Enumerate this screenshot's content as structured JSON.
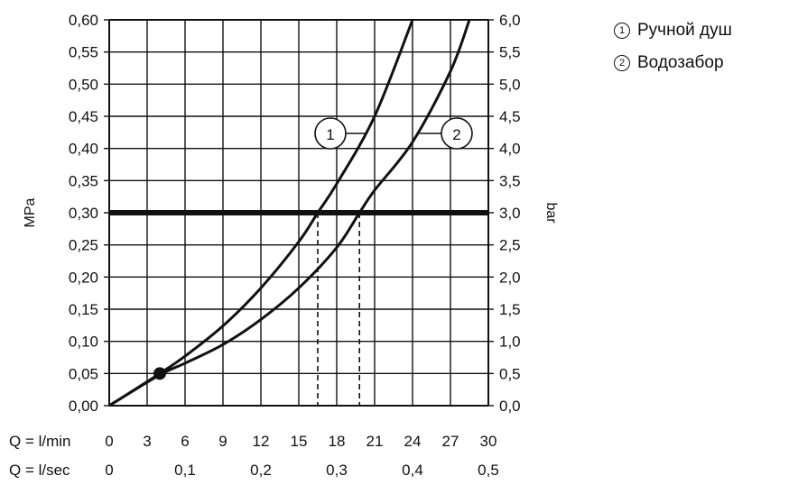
{
  "chart_data": {
    "type": "line",
    "ylabel_left": "MPa",
    "ylabel_right": "bar",
    "x_lmin_label": "Q = l/min",
    "x_lsec_label": "Q = l/sec",
    "x_lmin_ticks": [
      "0",
      "3",
      "6",
      "9",
      "12",
      "15",
      "18",
      "21",
      "24",
      "27",
      "30"
    ],
    "x_lsec_ticks": [
      "0",
      "0,1",
      "0,2",
      "0,3",
      "0,4",
      "0,5"
    ],
    "y_left_ticks": [
      "0,00",
      "0,05",
      "0,10",
      "0,15",
      "0,20",
      "0,25",
      "0,30",
      "0,35",
      "0,40",
      "0,45",
      "0,50",
      "0,55",
      "0,60"
    ],
    "y_right_ticks": [
      "0,0",
      "0,5",
      "1,0",
      "1,5",
      "2,0",
      "2,5",
      "3,0",
      "3,5",
      "4,0",
      "4,5",
      "5,0",
      "5,5",
      "6,0"
    ],
    "xlim": [
      0,
      30
    ],
    "ylim": [
      0,
      0.6
    ],
    "grid": true,
    "reference_pressure": 0.3,
    "marker_point": {
      "x": 4,
      "y": 0.05
    },
    "series": [
      {
        "name": "Ручной душ",
        "label": "1",
        "x": [
          0,
          4,
          6,
          9,
          12,
          15,
          16.5,
          18,
          21,
          24
        ],
        "y": [
          0,
          0.05,
          0.077,
          0.124,
          0.183,
          0.255,
          0.3,
          0.345,
          0.45,
          0.6
        ]
      },
      {
        "name": "Водозабор",
        "label": "2",
        "x": [
          0,
          4,
          6,
          9,
          12,
          15,
          18,
          19.8,
          21,
          24,
          27,
          28.5
        ],
        "y": [
          0,
          0.048,
          0.066,
          0.095,
          0.134,
          0.183,
          0.246,
          0.3,
          0.335,
          0.41,
          0.52,
          0.6
        ]
      }
    ],
    "legend": [
      {
        "num": "1",
        "label": "Ручной душ"
      },
      {
        "num": "2",
        "label": "Водозабор"
      }
    ]
  }
}
